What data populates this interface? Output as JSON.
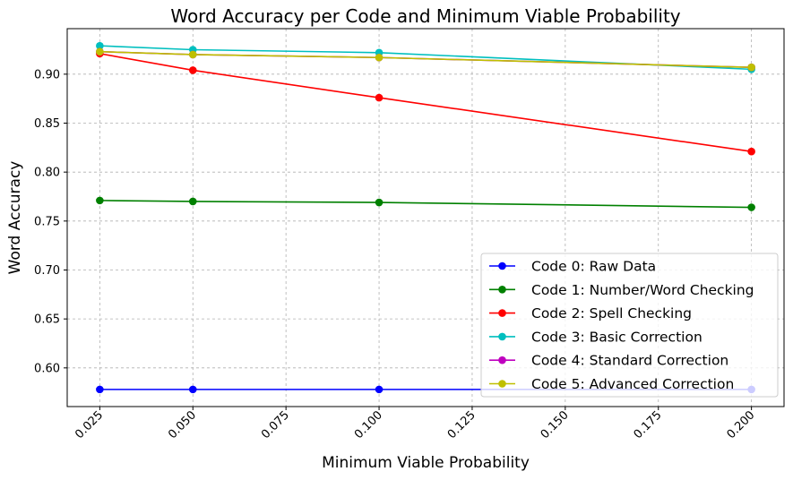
{
  "chart_data": {
    "type": "line",
    "title": "Word Accuracy per Code and Minimum Viable Probability",
    "xlabel": "Minimum Viable Probability",
    "ylabel": "Word Accuracy",
    "x": [
      0.025,
      0.05,
      0.1,
      0.2
    ],
    "xticks": [
      "0.025",
      "0.050",
      "0.075",
      "0.100",
      "0.125",
      "0.150",
      "0.175",
      "0.200"
    ],
    "xtick_values": [
      0.025,
      0.05,
      0.075,
      0.1,
      0.125,
      0.15,
      0.175,
      0.2
    ],
    "yticks": [
      "0.60",
      "0.65",
      "0.70",
      "0.75",
      "0.80",
      "0.85",
      "0.90"
    ],
    "ytick_values": [
      0.6,
      0.65,
      0.7,
      0.75,
      0.8,
      0.85,
      0.9
    ],
    "xlim": [
      0.01625,
      0.20875
    ],
    "ylim": [
      0.5605,
      0.9465
    ],
    "grid": true,
    "legend_position": "bottom-right",
    "series": [
      {
        "name": "Code 0: Raw Data",
        "color": "#0000ff",
        "values": [
          0.578,
          0.578,
          0.578,
          0.578
        ]
      },
      {
        "name": "Code 1: Number/Word Checking",
        "color": "#008000",
        "values": [
          0.771,
          0.77,
          0.769,
          0.764
        ]
      },
      {
        "name": "Code 2: Spell Checking",
        "color": "#ff0000",
        "values": [
          0.921,
          0.904,
          0.876,
          0.821
        ]
      },
      {
        "name": "Code 3: Basic Correction",
        "color": "#00bfbf",
        "values": [
          0.929,
          0.925,
          0.922,
          0.905
        ]
      },
      {
        "name": "Code 4: Standard Correction",
        "color": "#bf00bf",
        "values": [
          0.923,
          0.92,
          0.917,
          0.907
        ]
      },
      {
        "name": "Code 5: Advanced Correction",
        "color": "#bfbf00",
        "values": [
          0.923,
          0.92,
          0.917,
          0.907
        ]
      }
    ]
  }
}
